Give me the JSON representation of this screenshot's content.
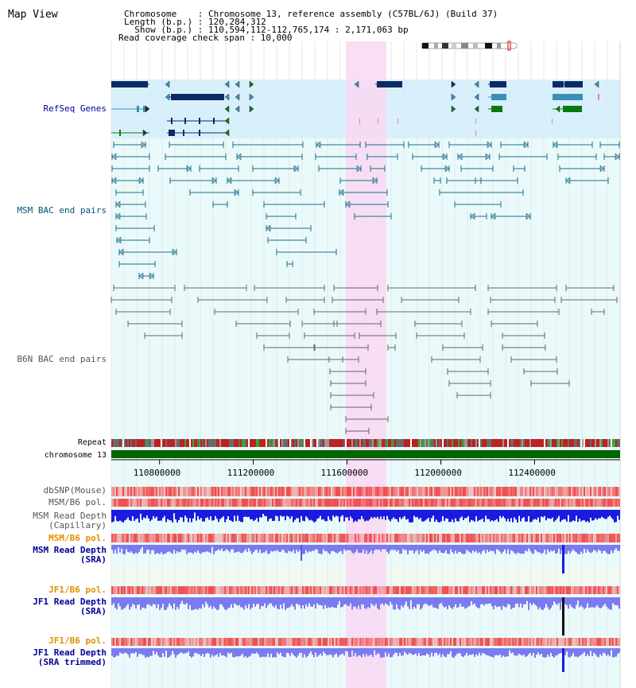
{
  "title": "Map View",
  "header": {
    "line1": "Chromosome    : Chromosome 13, reference assembly (C57BL/6J) (Build 37)",
    "line2": "Length (b.p.) : 120,284,312",
    "line3": "  Show (b.p.) : 110,594,112-112,765,174 : 2,171,063 bp",
    "line4": "Read coverage check span : 10,000"
  },
  "tracks": [
    {
      "key": "refseq",
      "label": "RefSeq Genes",
      "color": "#000099"
    },
    {
      "key": "msm_bac",
      "label": "MSM BAC end pairs",
      "color": "#005577"
    },
    {
      "key": "b6n_bac",
      "label": "B6N BAC end pairs",
      "color": "#555555"
    },
    {
      "key": "repeat",
      "label": "Repeat",
      "color": "#000000"
    },
    {
      "key": "chrom",
      "label": "chromosome 13",
      "color": "#000000"
    },
    {
      "key": "dbsnp",
      "label": "dbSNP(Mouse)",
      "color": "#555555"
    },
    {
      "key": "msm_pol1",
      "label": "MSM/B6 pol.",
      "color": "#555555"
    },
    {
      "key": "msm_depth_cap1",
      "label": "MSM Read Depth",
      "color": "#555555"
    },
    {
      "key": "msm_depth_cap2",
      "label": "(Capillary)",
      "color": "#555555"
    },
    {
      "key": "msm_pol2",
      "label": "MSM/B6 pol.",
      "color": "#e09000"
    },
    {
      "key": "msm_depth_sra1",
      "label": "MSM Read Depth",
      "color": "#000099"
    },
    {
      "key": "msm_depth_sra2",
      "label": "(SRA)",
      "color": "#000099"
    },
    {
      "key": "jf1_pol1",
      "label": "JF1/B6 pol.",
      "color": "#e09000"
    },
    {
      "key": "jf1_depth_sra1",
      "label": "JF1 Read Depth",
      "color": "#000099"
    },
    {
      "key": "jf1_depth_sra2",
      "label": "(SRA)",
      "color": "#000099"
    },
    {
      "key": "jf1_pol2",
      "label": "JF1/B6 pol.",
      "color": "#e09000"
    },
    {
      "key": "jf1_depth_trim1",
      "label": "JF1 Read Depth",
      "color": "#000099"
    },
    {
      "key": "jf1_depth_trim2",
      "label": "(SRA trimmed)",
      "color": "#000099"
    }
  ],
  "axis": {
    "ticks": [
      {
        "pos": 110800000,
        "label": "110800000"
      },
      {
        "pos": 111200000,
        "label": "111200000"
      },
      {
        "pos": 111600000,
        "label": "111600000"
      },
      {
        "pos": 112000000,
        "label": "112000000"
      },
      {
        "pos": 112400000,
        "label": "112400000"
      }
    ]
  },
  "colors": {
    "refseq_bg": "#d8f0fb",
    "track_bg": "#eafafa",
    "highlight": "#f9d8f2",
    "chrom_bar": "#006600",
    "depth_dark": "#1a1ae0",
    "depth_light": "#7b7bf0",
    "pol_red": "#f05050"
  }
}
